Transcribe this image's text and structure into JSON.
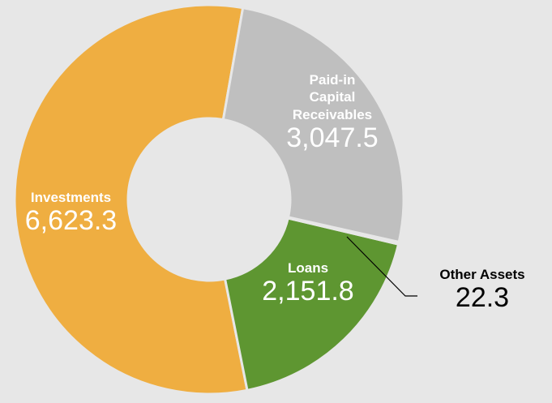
{
  "chart_data": {
    "type": "donut",
    "categories": [
      "Paid-in Capital Receivables",
      "Other Assets",
      "Loans",
      "Investments"
    ],
    "values": [
      3047.5,
      22.3,
      2151.8,
      6623.3
    ],
    "value_labels": [
      "3,047.5",
      "22.3",
      "2,151.8",
      "6,623.3"
    ],
    "colors": [
      "#bfbfbf",
      "#8c8c8c",
      "#5e9631",
      "#efae41"
    ]
  }
}
